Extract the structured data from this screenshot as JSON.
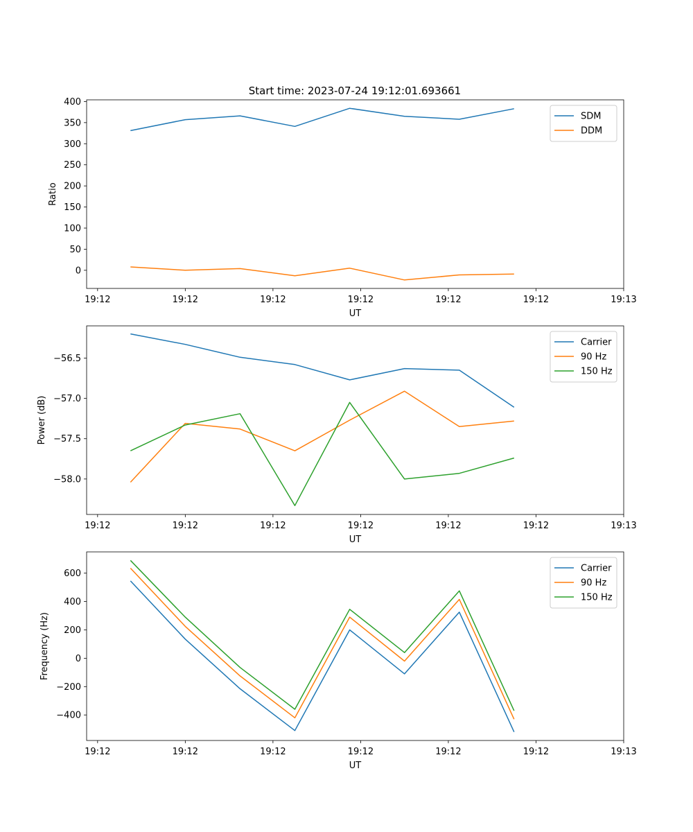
{
  "figure": {
    "title": "Start time: 2023-07-24 19:12:01.693661"
  },
  "chart_data": [
    {
      "type": "line",
      "name": "ratio",
      "xlabel": "UT",
      "ylabel": "Ratio",
      "x": [
        0.3,
        0.8,
        1.3,
        1.8,
        2.3,
        2.8,
        3.3,
        3.8
      ],
      "xlim": [
        -0.1,
        4.8
      ],
      "xticks": [
        0,
        0.8,
        1.6,
        2.4,
        3.2,
        4.0,
        4.8
      ],
      "xticklabels": [
        "19:12",
        "19:12",
        "19:12",
        "19:12",
        "19:12",
        "19:12",
        "19:13"
      ],
      "ylim": [
        -43,
        404
      ],
      "yticks": [
        0,
        50,
        100,
        150,
        200,
        250,
        300,
        350,
        400
      ],
      "yticklabels": [
        "0",
        "50",
        "100",
        "150",
        "200",
        "250",
        "300",
        "350",
        "400"
      ],
      "legend_position": "top-right",
      "series": [
        {
          "name": "SDM",
          "color": "#1f77b4",
          "values": [
            331,
            357,
            366,
            341,
            384,
            365,
            358,
            383
          ]
        },
        {
          "name": "DDM",
          "color": "#ff7f0e",
          "values": [
            8,
            0,
            4,
            -13,
            5,
            -23,
            -11,
            -9
          ]
        }
      ]
    },
    {
      "type": "line",
      "name": "power",
      "xlabel": "UT",
      "ylabel": "Power (dB)",
      "x": [
        0.3,
        0.8,
        1.3,
        1.8,
        2.3,
        2.8,
        3.3,
        3.8
      ],
      "xlim": [
        -0.1,
        4.8
      ],
      "xticks": [
        0,
        0.8,
        1.6,
        2.4,
        3.2,
        4.0,
        4.8
      ],
      "xticklabels": [
        "19:12",
        "19:12",
        "19:12",
        "19:12",
        "19:12",
        "19:12",
        "19:13"
      ],
      "ylim": [
        -58.44,
        -56.1
      ],
      "yticks": [
        -58.0,
        -57.5,
        -57.0,
        -56.5
      ],
      "yticklabels": [
        "−58.0",
        "−57.5",
        "−57.0",
        "−56.5"
      ],
      "legend_position": "top-right",
      "series": [
        {
          "name": "Carrier",
          "color": "#1f77b4",
          "values": [
            -56.2,
            -56.33,
            -56.49,
            -56.58,
            -56.77,
            -56.63,
            -56.65,
            -57.11
          ]
        },
        {
          "name": "90 Hz",
          "color": "#ff7f0e",
          "values": [
            -58.04,
            -57.31,
            -57.38,
            -57.65,
            -57.27,
            -56.91,
            -57.35,
            -57.28
          ]
        },
        {
          "name": "150 Hz",
          "color": "#2ca02c",
          "values": [
            -57.65,
            -57.33,
            -57.19,
            -58.33,
            -57.05,
            -58.0,
            -57.93,
            -57.74
          ]
        }
      ]
    },
    {
      "type": "line",
      "name": "frequency",
      "xlabel": "UT",
      "ylabel": "Frequency (Hz)",
      "x": [
        0.3,
        0.8,
        1.3,
        1.8,
        2.3,
        2.8,
        3.3,
        3.8
      ],
      "xlim": [
        -0.1,
        4.8
      ],
      "xticks": [
        0,
        0.8,
        1.6,
        2.4,
        3.2,
        4.0,
        4.8
      ],
      "xticklabels": [
        "19:12",
        "19:12",
        "19:12",
        "19:12",
        "19:12",
        "19:12",
        "19:13"
      ],
      "ylim": [
        -580,
        750
      ],
      "yticks": [
        -400,
        -200,
        0,
        200,
        400,
        600
      ],
      "yticklabels": [
        "−400",
        "−200",
        "0",
        "200",
        "400",
        "600"
      ],
      "legend_position": "top-right",
      "series": [
        {
          "name": "Carrier",
          "color": "#1f77b4",
          "values": [
            545,
            135,
            -215,
            -510,
            200,
            -110,
            325,
            -520
          ]
        },
        {
          "name": "90 Hz",
          "color": "#ff7f0e",
          "values": [
            635,
            225,
            -125,
            -420,
            290,
            -20,
            415,
            -430
          ]
        },
        {
          "name": "150 Hz",
          "color": "#2ca02c",
          "values": [
            690,
            290,
            -65,
            -360,
            345,
            40,
            475,
            -370
          ]
        }
      ]
    }
  ]
}
